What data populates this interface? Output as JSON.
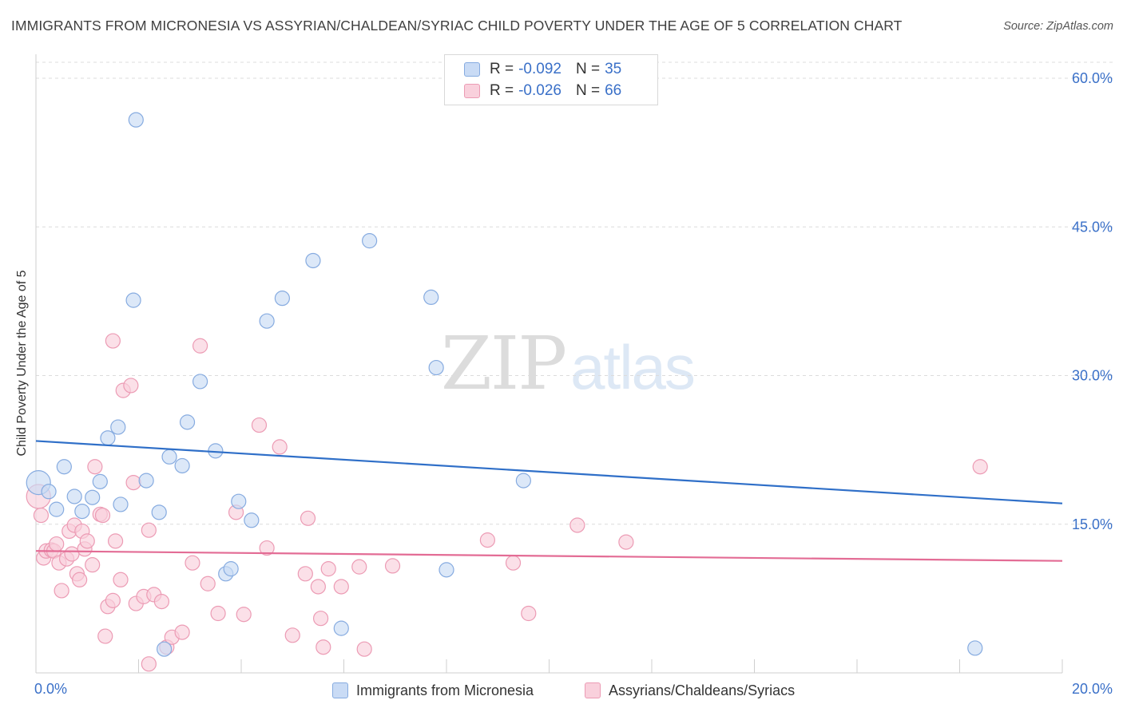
{
  "title": "IMMIGRANTS FROM MICRONESIA VS ASSYRIAN/CHALDEAN/SYRIAC CHILD POVERTY UNDER THE AGE OF 5 CORRELATION CHART",
  "source": "Source: ZipAtlas.com",
  "watermark": {
    "zip": "ZIP",
    "atlas": "atlas"
  },
  "colors": {
    "blue_fill": "#c9dbf5",
    "blue_stroke": "#86abe0",
    "blue_line": "#2f6fc8",
    "pink_fill": "#f9d0dc",
    "pink_stroke": "#ec9bb4",
    "pink_line": "#e36c95",
    "tick_label": "#3a70c8",
    "grid": "#dcdcdc"
  },
  "legend": {
    "rows": [
      {
        "r_label": "R =",
        "r_value": "-0.092",
        "n_label": "N =",
        "n_value": "35"
      },
      {
        "r_label": "R =",
        "r_value": "-0.026",
        "n_label": "N =",
        "n_value": "66"
      }
    ]
  },
  "bottom_legend": [
    "Immigrants from Micronesia",
    "Assyrians/Chaldeans/Syriacs"
  ],
  "chart_data": {
    "type": "scatter",
    "title": "IMMIGRANTS FROM MICRONESIA VS ASSYRIAN/CHALDEAN/SYRIAC CHILD POVERTY UNDER THE AGE OF 5 CORRELATION CHART",
    "xlabel": "",
    "ylabel": "Child Poverty Under the Age of 5",
    "xlim": [
      0,
      20
    ],
    "ylim": [
      0,
      60
    ],
    "x_tick_labels": [
      "0.0%",
      "20.0%"
    ],
    "y_ticks": [
      15,
      30,
      45,
      60
    ],
    "y_tick_labels": [
      "15.0%",
      "30.0%",
      "45.0%",
      "60.0%"
    ],
    "grid": true,
    "legend_position": "top-center",
    "series": [
      {
        "name": "Immigrants from Micronesia",
        "color": "#86abe0",
        "trend": {
          "x": [
            0,
            20
          ],
          "y": [
            23.4,
            17.1
          ]
        },
        "points": [
          [
            0.05,
            19.2
          ],
          [
            0.25,
            18.3
          ],
          [
            0.4,
            16.5
          ],
          [
            0.55,
            20.8
          ],
          [
            0.75,
            17.8
          ],
          [
            0.9,
            16.3
          ],
          [
            1.1,
            17.7
          ],
          [
            1.25,
            19.3
          ],
          [
            1.4,
            23.7
          ],
          [
            1.6,
            24.8
          ],
          [
            1.65,
            17.0
          ],
          [
            1.9,
            37.6
          ],
          [
            1.95,
            55.8
          ],
          [
            2.15,
            19.4
          ],
          [
            2.4,
            16.2
          ],
          [
            2.5,
            2.4
          ],
          [
            2.6,
            21.8
          ],
          [
            2.85,
            20.9
          ],
          [
            2.95,
            25.3
          ],
          [
            3.2,
            29.4
          ],
          [
            3.5,
            22.4
          ],
          [
            3.7,
            10.0
          ],
          [
            3.8,
            10.5
          ],
          [
            3.95,
            17.3
          ],
          [
            4.2,
            15.4
          ],
          [
            4.5,
            35.5
          ],
          [
            4.8,
            37.8
          ],
          [
            5.4,
            41.6
          ],
          [
            5.95,
            4.5
          ],
          [
            6.5,
            43.6
          ],
          [
            7.7,
            37.9
          ],
          [
            7.8,
            30.8
          ],
          [
            8.0,
            10.4
          ],
          [
            9.5,
            19.4
          ],
          [
            18.3,
            2.5
          ]
        ]
      },
      {
        "name": "Assyrians/Chaldeans/Syriacs",
        "color": "#ec9bb4",
        "trend": {
          "x": [
            0,
            20
          ],
          "y": [
            12.3,
            11.3
          ]
        },
        "points": [
          [
            0.05,
            17.8
          ],
          [
            0.1,
            15.9
          ],
          [
            0.15,
            11.6
          ],
          [
            0.2,
            12.3
          ],
          [
            0.3,
            12.4
          ],
          [
            0.35,
            12.3
          ],
          [
            0.4,
            13.0
          ],
          [
            0.45,
            11.1
          ],
          [
            0.5,
            8.3
          ],
          [
            0.6,
            11.5
          ],
          [
            0.65,
            14.3
          ],
          [
            0.7,
            12.0
          ],
          [
            0.75,
            14.9
          ],
          [
            0.8,
            10.0
          ],
          [
            0.85,
            9.4
          ],
          [
            0.9,
            14.3
          ],
          [
            0.95,
            12.5
          ],
          [
            1.0,
            13.3
          ],
          [
            1.1,
            10.9
          ],
          [
            1.15,
            20.8
          ],
          [
            1.25,
            16.0
          ],
          [
            1.3,
            15.9
          ],
          [
            1.35,
            3.7
          ],
          [
            1.4,
            6.7
          ],
          [
            1.5,
            7.3
          ],
          [
            1.5,
            33.5
          ],
          [
            1.55,
            13.3
          ],
          [
            1.65,
            9.4
          ],
          [
            1.7,
            28.5
          ],
          [
            1.85,
            29.0
          ],
          [
            1.9,
            19.2
          ],
          [
            1.95,
            7.0
          ],
          [
            2.1,
            7.7
          ],
          [
            2.2,
            0.9
          ],
          [
            2.2,
            14.4
          ],
          [
            2.3,
            7.9
          ],
          [
            2.45,
            7.2
          ],
          [
            2.55,
            2.6
          ],
          [
            2.65,
            3.6
          ],
          [
            2.85,
            4.1
          ],
          [
            3.05,
            11.1
          ],
          [
            3.2,
            33.0
          ],
          [
            3.35,
            9.0
          ],
          [
            3.55,
            6.0
          ],
          [
            3.9,
            16.2
          ],
          [
            4.05,
            5.9
          ],
          [
            4.35,
            25.0
          ],
          [
            4.5,
            12.6
          ],
          [
            4.75,
            22.8
          ],
          [
            5.0,
            3.8
          ],
          [
            5.25,
            10.0
          ],
          [
            5.3,
            15.6
          ],
          [
            5.5,
            8.7
          ],
          [
            5.55,
            5.5
          ],
          [
            5.6,
            2.6
          ],
          [
            5.7,
            10.5
          ],
          [
            5.95,
            8.7
          ],
          [
            6.3,
            10.7
          ],
          [
            6.4,
            2.4
          ],
          [
            6.95,
            10.8
          ],
          [
            8.8,
            13.4
          ],
          [
            9.3,
            11.1
          ],
          [
            9.6,
            6.0
          ],
          [
            10.55,
            14.9
          ],
          [
            11.5,
            13.2
          ],
          [
            18.4,
            20.8
          ]
        ]
      }
    ]
  }
}
